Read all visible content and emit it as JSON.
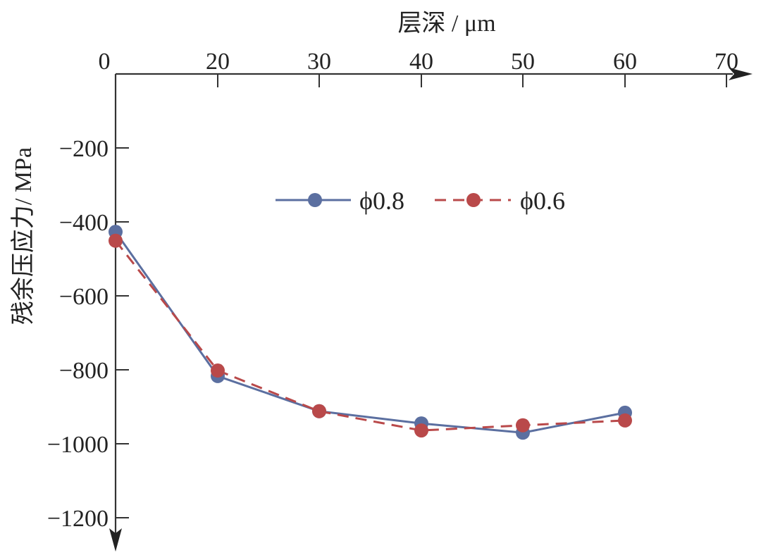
{
  "chart_data": {
    "type": "line",
    "title": "",
    "xlabel": "层深 / μm",
    "ylabel": "残余压应力/ MPa",
    "x_axis_position": "top",
    "y_axis_inverted": true,
    "grid": false,
    "legend_position": "upper-center",
    "x_ticks": [
      0,
      20,
      30,
      40,
      50,
      60,
      70
    ],
    "y_ticks": [
      -200,
      -400,
      -600,
      -800,
      -1000,
      -1200
    ],
    "xlim": [
      0,
      70
    ],
    "ylim": [
      0,
      -1200
    ],
    "x": [
      1,
      20,
      30,
      40,
      50,
      60
    ],
    "series": [
      {
        "name": "ϕ0.8",
        "line_style": "solid",
        "color": "#5b6fa0",
        "values": [
          -427,
          -817,
          -912,
          -945,
          -970,
          -916
        ]
      },
      {
        "name": "ϕ0.6",
        "line_style": "dashed",
        "color": "#b9494a",
        "values": [
          -451,
          -802,
          -912,
          -964,
          -950,
          -937
        ]
      }
    ]
  },
  "axes": {
    "x_title": "层深 / μm",
    "y_title": "残余压应力/ MPa",
    "x_tick_labels": [
      "0",
      "20",
      "30",
      "40",
      "50",
      "60",
      "70"
    ],
    "y_tick_labels": [
      "−200",
      "−400",
      "−600",
      "−800",
      "−1000",
      "−1200"
    ]
  },
  "legend": {
    "items": [
      {
        "label": "ϕ0.8",
        "color": "#5b6fa0",
        "style": "solid"
      },
      {
        "label": "ϕ0.6",
        "color": "#b9494a",
        "style": "dashed"
      }
    ]
  }
}
